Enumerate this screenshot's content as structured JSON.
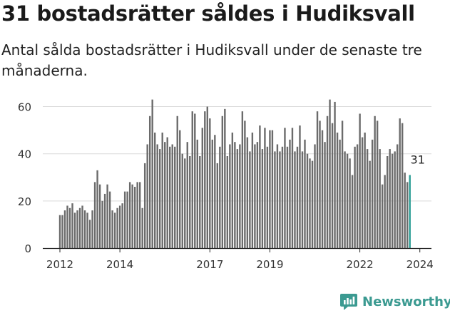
{
  "header": {
    "title": "31 bostadsrätter såldes i Hudiksvall",
    "subtitle": "Antal sålda bostadsrätter i Hudiksvall under de senaste tre månaderna."
  },
  "brand": {
    "name": "Newsworthy",
    "icon": "newsworthy-logo-icon",
    "color": "#3b9a91"
  },
  "colors": {
    "bar": "#6b6b6b",
    "highlight": "#2a9d93",
    "grid": "#d9d9d9",
    "axis": "#222222"
  },
  "chart_data": {
    "type": "bar",
    "title": "",
    "xlabel": "",
    "ylabel": "",
    "ylim": [
      0,
      65
    ],
    "yticks": [
      0,
      20,
      40,
      60
    ],
    "grid": "horizontal",
    "x_start": "2012-01",
    "xtick_labels": [
      "2012",
      "2014",
      "2017",
      "2019",
      "2022",
      "2024"
    ],
    "xtick_months": [
      "2012-01",
      "2014-01",
      "2017-01",
      "2019-01",
      "2022-01",
      "2024-01"
    ],
    "highlight_label": "31",
    "values": [
      14,
      14,
      16,
      18,
      17,
      19,
      15,
      16,
      17,
      18,
      16,
      15,
      12,
      16,
      28,
      33,
      27,
      20,
      23,
      27,
      24,
      16,
      15,
      17,
      18,
      19,
      24,
      24,
      28,
      27,
      26,
      28,
      28,
      17,
      36,
      44,
      56,
      63,
      49,
      44,
      42,
      49,
      45,
      47,
      43,
      44,
      43,
      56,
      50,
      40,
      38,
      45,
      39,
      58,
      57,
      46,
      39,
      51,
      58,
      60,
      55,
      46,
      48,
      36,
      43,
      56,
      59,
      39,
      44,
      49,
      45,
      42,
      44,
      58,
      54,
      47,
      41,
      49,
      44,
      45,
      52,
      42,
      51,
      43,
      50,
      50,
      41,
      44,
      41,
      43,
      51,
      43,
      46,
      51,
      41,
      43,
      52,
      41,
      46,
      40,
      38,
      37,
      44,
      58,
      54,
      50,
      45,
      56,
      63,
      53,
      62,
      49,
      46,
      54,
      41,
      40,
      38,
      31,
      43,
      44,
      57,
      47,
      49,
      42,
      37,
      46,
      56,
      54,
      42,
      27,
      31,
      39,
      42,
      40,
      41,
      44,
      55,
      53,
      32,
      28,
      31
    ]
  }
}
